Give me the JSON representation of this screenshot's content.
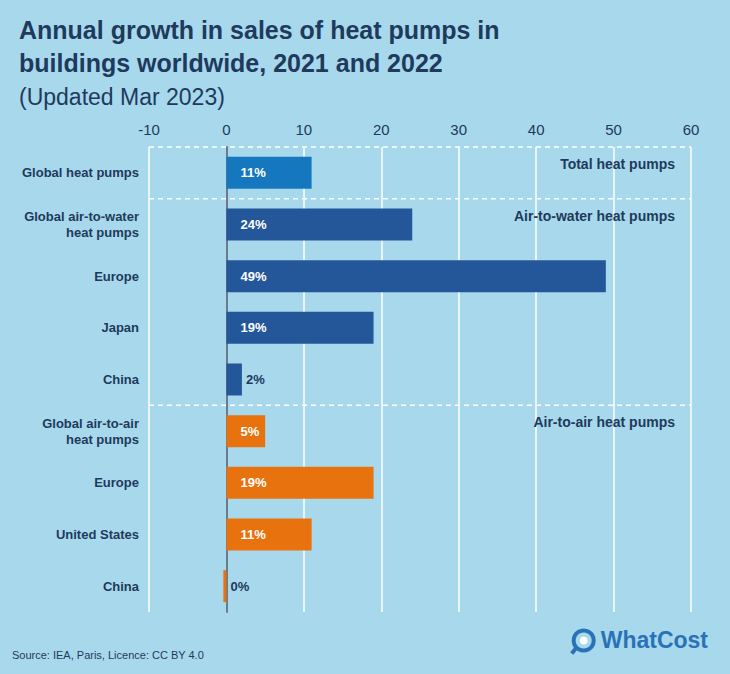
{
  "chart_data": {
    "type": "bar",
    "orientation": "horizontal",
    "title": "Annual growth in sales of heat pumps in\nbuildings worldwide, 2021 and 2022",
    "subtitle": "(Updated Mar 2023)",
    "categories": [
      "Global heat pumps",
      "Global air-to-water heat pumps",
      "Europe",
      "Japan",
      "China",
      "Global air-to-air heat pumps",
      "Europe",
      "United States",
      "China"
    ],
    "values": [
      11,
      24,
      49,
      19,
      2,
      5,
      19,
      11,
      -0.4
    ],
    "value_labels": [
      "11%",
      "24%",
      "49%",
      "19%",
      "2%",
      "5%",
      "19%",
      "11%",
      "0%"
    ],
    "colors": [
      "#1577bd",
      "#24569a",
      "#24569a",
      "#24569a",
      "#24569a",
      "#e8730e",
      "#e8730e",
      "#e8730e",
      "#e8730e"
    ],
    "sections": [
      {
        "label": "Total heat pumps",
        "count": 1
      },
      {
        "label": "Air-to-water heat pumps",
        "count": 4
      },
      {
        "label": "Air-to-air heat pumps",
        "count": 4
      }
    ],
    "xlim": [
      -10,
      60
    ],
    "xticks": [
      -10,
      0,
      10,
      20,
      30,
      40,
      50,
      60
    ],
    "grid": true,
    "data_labels": true,
    "source": "Source: IEA, Paris, Licence: CC BY 4.0",
    "logo": "WhatCost"
  }
}
